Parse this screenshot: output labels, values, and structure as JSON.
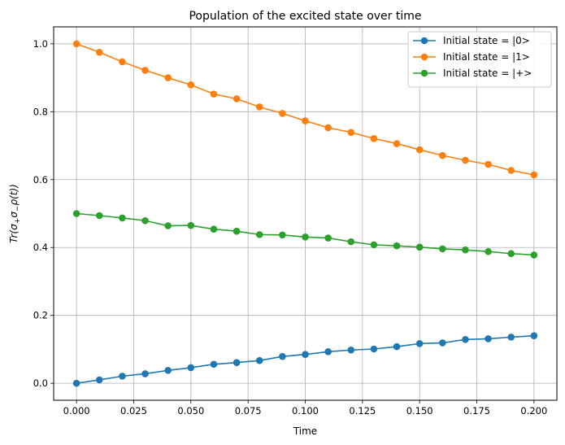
{
  "chart_data": {
    "type": "line",
    "title": "Population of the excited state over time",
    "xlabel": "Time",
    "ylabel": "Tr(σ₊σ₋ρ(t))",
    "ylabel_parts": {
      "base": "Tr(σ",
      "sub1": "+",
      "mid": "σ",
      "sub2": "−",
      "tail": "ρ(t))"
    },
    "xlim": [
      -0.01,
      0.21
    ],
    "ylim": [
      -0.05,
      1.05
    ],
    "xticks": [
      0.0,
      0.025,
      0.05,
      0.075,
      0.1,
      0.125,
      0.15,
      0.175,
      0.2
    ],
    "xtick_labels": [
      "0.000",
      "0.025",
      "0.050",
      "0.075",
      "0.100",
      "0.125",
      "0.150",
      "0.175",
      "0.200"
    ],
    "yticks": [
      0.0,
      0.2,
      0.4,
      0.6,
      0.8,
      1.0
    ],
    "ytick_labels": [
      "0.0",
      "0.2",
      "0.4",
      "0.6",
      "0.8",
      "1.0"
    ],
    "grid": true,
    "legend_position": "top-right",
    "x": [
      0.0,
      0.01,
      0.02,
      0.03,
      0.04,
      0.05,
      0.06,
      0.07,
      0.08,
      0.09,
      0.1,
      0.11,
      0.12,
      0.13,
      0.14,
      0.15,
      0.16,
      0.17,
      0.18,
      0.19,
      0.2
    ],
    "series": [
      {
        "name": "Initial state = |0>",
        "color": "#1f77b4",
        "values": [
          0.0,
          0.01,
          0.021,
          0.028,
          0.038,
          0.046,
          0.056,
          0.061,
          0.067,
          0.079,
          0.085,
          0.093,
          0.098,
          0.101,
          0.108,
          0.117,
          0.119,
          0.129,
          0.131,
          0.136,
          0.14
        ]
      },
      {
        "name": "Initial state = |1>",
        "color": "#ff7f0e",
        "values": [
          1.0,
          0.975,
          0.947,
          0.922,
          0.9,
          0.879,
          0.852,
          0.838,
          0.814,
          0.795,
          0.773,
          0.753,
          0.739,
          0.721,
          0.706,
          0.688,
          0.671,
          0.657,
          0.645,
          0.627,
          0.614
        ]
      },
      {
        "name": "Initial state = |+>",
        "color": "#2ca02c",
        "values": [
          0.5,
          0.494,
          0.487,
          0.479,
          0.464,
          0.465,
          0.454,
          0.448,
          0.438,
          0.437,
          0.431,
          0.428,
          0.417,
          0.408,
          0.405,
          0.401,
          0.396,
          0.393,
          0.388,
          0.382,
          0.378
        ]
      }
    ]
  }
}
